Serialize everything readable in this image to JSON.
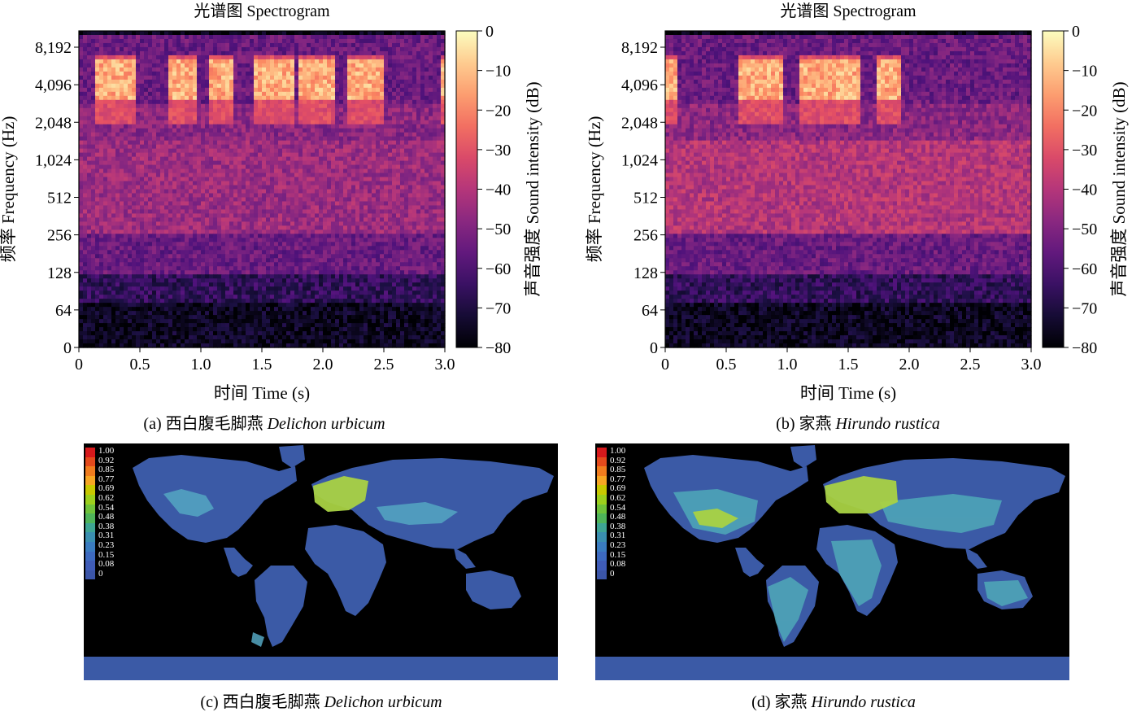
{
  "spectrograms": [
    {
      "id": "a",
      "title": "光谱图 Spectrogram",
      "xlabel": "时间 Time (s)",
      "ylabel": "频率 Frequency (Hz)",
      "x_ticks": [
        "0",
        "0.5",
        "1.0",
        "1.5",
        "2.0",
        "2.5",
        "3.0"
      ],
      "y_ticks": [
        "0",
        "64",
        "128",
        "256",
        "512",
        "1,024",
        "2,048",
        "4,096",
        "8,192"
      ],
      "colorbar_label": "声音强度 Sound intensity (dB)",
      "colorbar_ticks": [
        "0",
        "−10",
        "−20",
        "−30",
        "−40",
        "−50",
        "−60",
        "−70",
        "−80"
      ],
      "caption_prefix": "(a) 西白腹毛脚燕 ",
      "caption_species": "Delichon urbicum"
    },
    {
      "id": "b",
      "title": "光谱图 Spectrogram",
      "xlabel": "时间 Time (s)",
      "ylabel": "频率 Frequency (Hz)",
      "x_ticks": [
        "0",
        "0.5",
        "1.0",
        "1.5",
        "2.0",
        "2.5",
        "3.0"
      ],
      "y_ticks": [
        "0",
        "64",
        "128",
        "256",
        "512",
        "1,024",
        "2,048",
        "4,096",
        "8,192"
      ],
      "colorbar_label": "声音强度 Sound intensity (dB)",
      "colorbar_ticks": [
        "0",
        "−10",
        "−20",
        "−30",
        "−40",
        "−50",
        "−60",
        "−70",
        "−80"
      ],
      "caption_prefix": "(b) 家燕 ",
      "caption_species": "Hirundo rustica"
    }
  ],
  "maps": [
    {
      "id": "c",
      "legend": [
        "1.00",
        "0.92",
        "0.85",
        "0.77",
        "0.69",
        "0.62",
        "0.54",
        "0.48",
        "0.38",
        "0.31",
        "0.23",
        "0.15",
        "0.08",
        "0"
      ],
      "caption_prefix": "(c) 西白腹毛脚燕 ",
      "caption_species": "Delichon urbicum"
    },
    {
      "id": "d",
      "legend": [
        "1.00",
        "0.92",
        "0.85",
        "0.77",
        "0.69",
        "0.62",
        "0.54",
        "0.48",
        "0.38",
        "0.31",
        "0.23",
        "0.15",
        "0.08",
        "0"
      ],
      "caption_prefix": "(d) 家燕 ",
      "caption_species": "Hirundo rustica"
    }
  ],
  "legend_colors": [
    "#d7191c",
    "#e44a1c",
    "#f07c1e",
    "#f6a623",
    "#c8c800",
    "#9ccf1c",
    "#6fc23a",
    "#4fb45a",
    "#3ea594",
    "#3a8fb0",
    "#3a7cc0",
    "#3d6ac0",
    "#3f5cb8",
    "#3b55a8"
  ],
  "chart_data": [
    {
      "type": "heatmap",
      "panel": "a",
      "title": "光谱图 Spectrogram",
      "xlabel": "时间 Time (s)",
      "ylabel": "频率 Frequency (Hz)",
      "xlim": [
        0,
        3.0
      ],
      "y_scale": "log2 (with 0)",
      "y_ticks_hz": [
        0,
        64,
        128,
        256,
        512,
        1024,
        2048,
        4096,
        8192
      ],
      "colorbar_db": [
        -80,
        0
      ],
      "call_bursts_s": [
        [
          0.15,
          0.45
        ],
        [
          0.75,
          0.95
        ],
        [
          1.05,
          1.25
        ],
        [
          1.45,
          1.75
        ],
        [
          1.8,
          2.1
        ],
        [
          2.2,
          2.5
        ],
        [
          2.95,
          3.0
        ]
      ],
      "call_band_hz": [
        3000,
        6000
      ]
    },
    {
      "type": "heatmap",
      "panel": "b",
      "title": "光谱图 Spectrogram",
      "xlabel": "时间 Time (s)",
      "ylabel": "频率 Frequency (Hz)",
      "xlim": [
        0,
        3.0
      ],
      "y_scale": "log2 (with 0)",
      "y_ticks_hz": [
        0,
        64,
        128,
        256,
        512,
        1024,
        2048,
        4096,
        8192
      ],
      "colorbar_db": [
        -80,
        0
      ],
      "call_bursts_s": [
        [
          0.0,
          0.1
        ],
        [
          0.6,
          0.95
        ],
        [
          1.1,
          1.6
        ],
        [
          1.75,
          1.95
        ]
      ],
      "call_band_hz": [
        3000,
        6000
      ]
    }
  ]
}
